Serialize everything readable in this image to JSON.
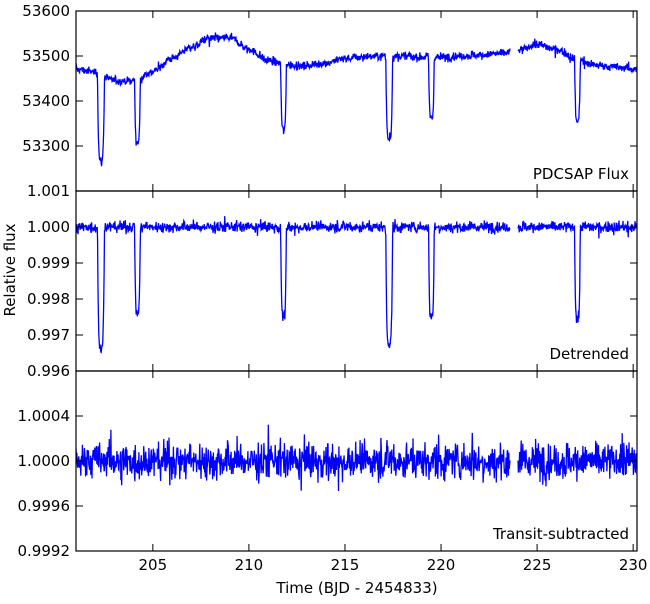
{
  "chart_data": {
    "type": "line",
    "xlabel": "Time (BJD - 2454833)",
    "ylabel": "Relative flux",
    "xlim": [
      201,
      230.2
    ],
    "x_ticks": [
      "205",
      "210",
      "215",
      "220",
      "225",
      "230"
    ],
    "x_tick_values": [
      205,
      210,
      215,
      220,
      225,
      230
    ],
    "series_color": "#0000ff",
    "gap": [
      223.6,
      224.0
    ],
    "transits": [
      {
        "t": 202.3,
        "width": 0.18
      },
      {
        "t": 204.2,
        "width": 0.15
      },
      {
        "t": 211.8,
        "width": 0.15
      },
      {
        "t": 217.3,
        "width": 0.18
      },
      {
        "t": 219.5,
        "width": 0.15
      },
      {
        "t": 227.1,
        "width": 0.15
      }
    ],
    "panels": [
      {
        "label": "PDCSAP Flux",
        "ylim": [
          53200,
          53600
        ],
        "y_ticks": [
          "53300",
          "53400",
          "53500",
          "53600"
        ],
        "y_tick_values": [
          53300,
          53400,
          53500,
          53600
        ],
        "baseline": [
          [
            201,
            53470
          ],
          [
            202,
            53465
          ],
          [
            203,
            53445
          ],
          [
            204,
            53445
          ],
          [
            205,
            53465
          ],
          [
            206,
            53495
          ],
          [
            207,
            53520
          ],
          [
            208,
            53540
          ],
          [
            209,
            53540
          ],
          [
            210,
            53515
          ],
          [
            211,
            53490
          ],
          [
            212,
            53480
          ],
          [
            213,
            53478
          ],
          [
            214,
            53485
          ],
          [
            215,
            53495
          ],
          [
            216,
            53498
          ],
          [
            217,
            53500
          ],
          [
            218,
            53500
          ],
          [
            219,
            53498
          ],
          [
            220,
            53497
          ],
          [
            221,
            53500
          ],
          [
            222,
            53502
          ],
          [
            223,
            53505
          ],
          [
            224,
            53512
          ],
          [
            225,
            53525
          ],
          [
            226,
            53515
          ],
          [
            227,
            53495
          ],
          [
            228,
            53480
          ],
          [
            229,
            53475
          ],
          [
            230.2,
            53470
          ]
        ],
        "noise": 8,
        "transit_depths": [
          195,
          140,
          145,
          185,
          135,
          140
        ]
      },
      {
        "label": "Detrended",
        "ylim": [
          0.996,
          1.001
        ],
        "y_ticks": [
          "0.996",
          "0.997",
          "0.998",
          "0.999",
          "1.000",
          "1.001"
        ],
        "y_tick_values": [
          0.996,
          0.997,
          0.998,
          0.999,
          1.0,
          1.001
        ],
        "baseline": [
          [
            201,
            1.0
          ],
          [
            230.2,
            1.0
          ]
        ],
        "noise": 0.00013,
        "transit_depths": [
          0.0034,
          0.0024,
          0.0025,
          0.0033,
          0.0025,
          0.0026
        ]
      },
      {
        "label": "Transit-subtracted",
        "ylim": [
          0.9992,
          1.0008
        ],
        "y_ticks": [
          "0.9992",
          "0.9996",
          "1.0000",
          "1.0004"
        ],
        "y_tick_values": [
          0.9992,
          0.9996,
          1.0,
          1.0004
        ],
        "baseline": [
          [
            201,
            1.0
          ],
          [
            230.2,
            1.0
          ]
        ],
        "noise": 0.00014,
        "transit_depths": [
          0,
          0,
          0,
          0,
          0,
          0
        ]
      }
    ]
  }
}
